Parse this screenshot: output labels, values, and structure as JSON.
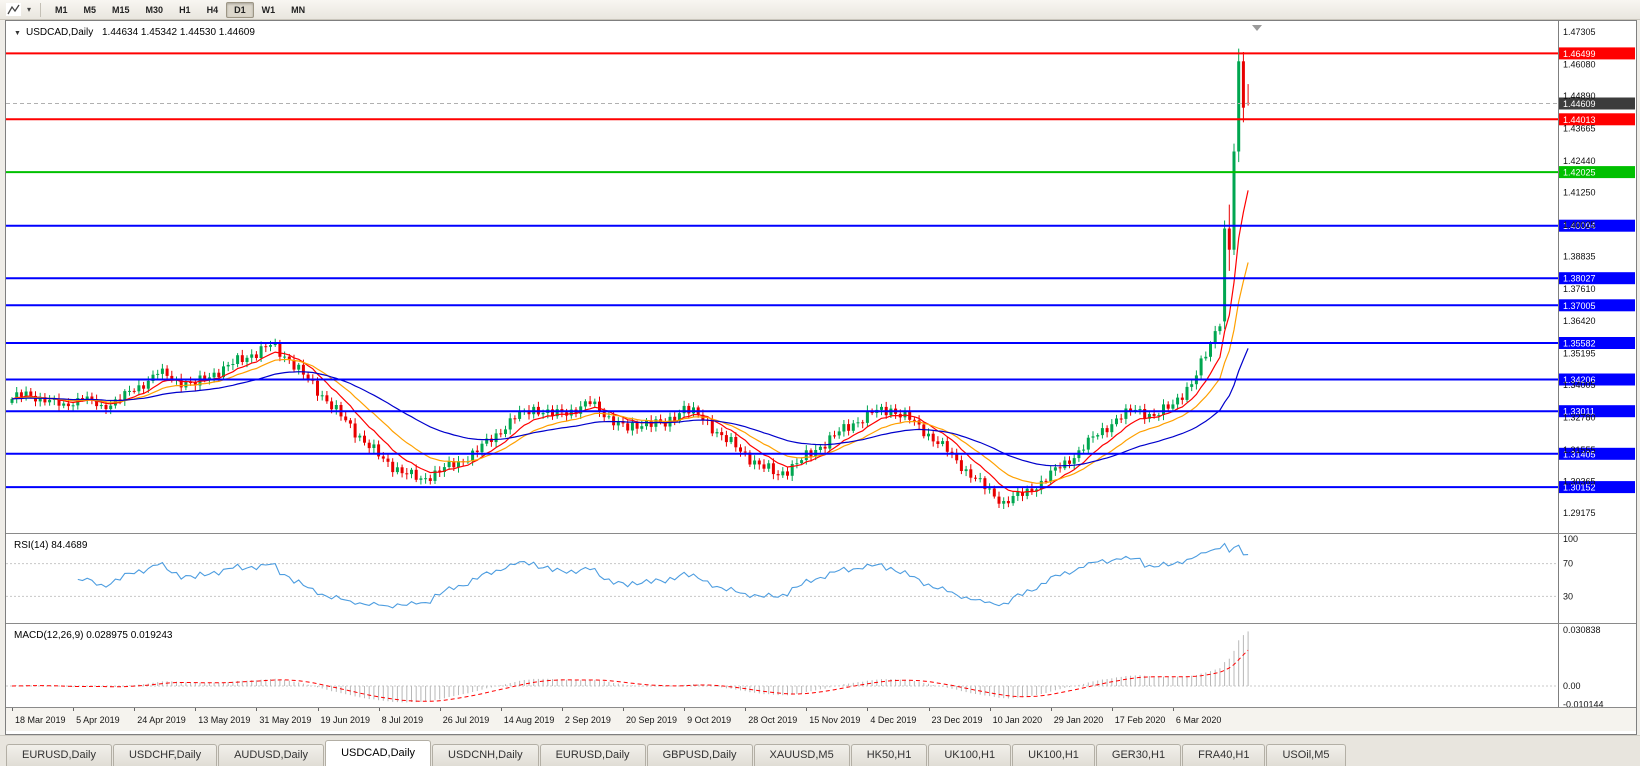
{
  "toolbar": {
    "timeframes": [
      "M1",
      "M5",
      "M15",
      "M30",
      "H1",
      "H4",
      "D1",
      "W1",
      "MN"
    ],
    "active_timeframe": "D1"
  },
  "chart": {
    "symbol_dropdown_icon": "▼",
    "title": "USDCAD,Daily",
    "ohlc_text": "1.44634 1.45342 1.44530 1.44609",
    "price_axis_top_value": 1.47305,
    "price_axis_bottom_value": 1.29175,
    "price_axis_labels": [
      "1.47305",
      "1.46080",
      "1.44890",
      "1.43665",
      "1.42440",
      "1.41250",
      "1.40025",
      "1.38835",
      "1.37610",
      "1.36420",
      "1.35195",
      "1.34005",
      "1.32780",
      "1.31555",
      "1.30365",
      "1.29175"
    ],
    "bid_price": 1.44609,
    "bid_price_label": "1.44609",
    "hlines": [
      {
        "label": "1.46499",
        "price": 1.46499,
        "color": "#ff0000",
        "width": 2
      },
      {
        "label": "1.44013",
        "price": 1.44013,
        "color": "#ff0000",
        "width": 2
      },
      {
        "label": "1.42025",
        "price": 1.42025,
        "color": "#00c000",
        "width": 2
      },
      {
        "label": "1.40004",
        "price": 1.40004,
        "color": "#0000ff",
        "width": 2
      },
      {
        "label": "1.38027",
        "price": 1.38027,
        "color": "#0000ff",
        "width": 2
      },
      {
        "label": "1.37005",
        "price": 1.37005,
        "color": "#0000ff",
        "width": 2
      },
      {
        "label": "1.35582",
        "price": 1.35582,
        "color": "#0000ff",
        "width": 2
      },
      {
        "label": "1.34206",
        "price": 1.34206,
        "color": "#0000ff",
        "width": 2
      },
      {
        "label": "1.33011",
        "price": 1.33011,
        "color": "#0000ff",
        "width": 2
      },
      {
        "label": "1.31405",
        "price": 1.31405,
        "color": "#0000ff",
        "width": 2
      },
      {
        "label": "1.30152",
        "price": 1.30152,
        "color": "#0000ff",
        "width": 2
      }
    ]
  },
  "rsi": {
    "label": "RSI(14) 84.4689",
    "period": 14,
    "levels": [
      {
        "label": "100",
        "value": 100,
        "line": false
      },
      {
        "label": "70",
        "value": 70,
        "line": true
      },
      {
        "label": "30",
        "value": 30,
        "line": true
      }
    ]
  },
  "macd": {
    "label": "MACD(12,26,9) 0.028975 0.019243",
    "fast": 12,
    "slow": 26,
    "signal": 9,
    "axis": [
      {
        "label": "0.030838",
        "value": 0.030838,
        "line": false
      },
      {
        "label": "0.00",
        "value": 0,
        "line": true
      },
      {
        "label": "-0.010144",
        "value": -0.010144,
        "line": false
      }
    ]
  },
  "tabs": {
    "items": [
      "EURUSD,Daily",
      "USDCHF,Daily",
      "AUDUSD,Daily",
      "USDCAD,Daily",
      "USDCNH,Daily",
      "EURUSD,Daily",
      "GBPUSD,Daily",
      "XAUUSD,M5",
      "HK50,H1",
      "UK100,H1",
      "UK100,H1",
      "GER30,H1",
      "FRA40,H1",
      "USOil,M5"
    ],
    "active_index": 3
  },
  "colors": {
    "bull": "#00a650",
    "bear": "#e80000",
    "bid_line": "#b0b0b0",
    "bid_tag": "#3c3c3c",
    "rsi_line": "#4d9de0",
    "macd_hist": "#b8b8b8",
    "macd_signal": "#ff0000",
    "level_dotted": "#c8c8c8",
    "axis_line": "#7f7f7f"
  },
  "chart_data": {
    "type": "candlestick",
    "symbol": "USDCAD",
    "timeframe": "Daily",
    "ylim": [
      1.29175,
      1.47305
    ],
    "candles_per_anchor": 4,
    "anchor_closes": [
      1.337,
      1.334,
      1.3325,
      1.335,
      1.332,
      1.3345,
      1.3395,
      1.3445,
      1.342,
      1.34,
      1.3445,
      1.348,
      1.3515,
      1.355,
      1.3495,
      1.342,
      1.334,
      1.3265,
      1.3185,
      1.312,
      1.307,
      1.3045,
      1.3075,
      1.311,
      1.315,
      1.3215,
      1.3275,
      1.3315,
      1.3285,
      1.3305,
      1.333,
      1.328,
      1.323,
      1.3265,
      1.3245,
      1.332,
      1.327,
      1.321,
      1.315,
      1.31,
      1.306,
      1.3105,
      1.3155,
      1.321,
      1.3255,
      1.3295,
      1.331,
      1.327,
      1.3215,
      1.315,
      1.308,
      1.301,
      1.296,
      1.2985,
      1.3035,
      1.309,
      1.315,
      1.3215,
      1.327,
      1.331,
      1.328,
      1.333,
      1.34,
      1.356,
      1.372,
      1.446
    ],
    "final_candles": [
      [
        1.364,
        1.402,
        1.361,
        1.399
      ],
      [
        1.399,
        1.408,
        1.383,
        1.391
      ],
      [
        1.391,
        1.431,
        1.389,
        1.428
      ],
      [
        1.428,
        1.4668,
        1.424,
        1.462
      ],
      [
        1.462,
        1.4655,
        1.439,
        1.4445
      ],
      [
        1.44634,
        1.45342,
        1.4453,
        1.44609
      ]
    ],
    "moving_averages": [
      {
        "name": "fast",
        "period": 9,
        "color": "#ff0000"
      },
      {
        "name": "mid",
        "period": 18,
        "color": "#ffa000"
      },
      {
        "name": "slow",
        "period": 45,
        "color": "#0000cc"
      }
    ],
    "date_labels": [
      "18 Mar 2019",
      "5 Apr 2019",
      "24 Apr 2019",
      "13 May 2019",
      "31 May 2019",
      "19 Jun 2019",
      "8 Jul 2019",
      "26 Jul 2019",
      "14 Aug 2019",
      "2 Sep 2019",
      "20 Sep 2019",
      "9 Oct 2019",
      "28 Oct 2019",
      "15 Nov 2019",
      "4 Dec 2019",
      "23 Dec 2019",
      "10 Jan 2020",
      "29 Jan 2020",
      "17 Feb 2020",
      "6 Mar 2020"
    ]
  }
}
